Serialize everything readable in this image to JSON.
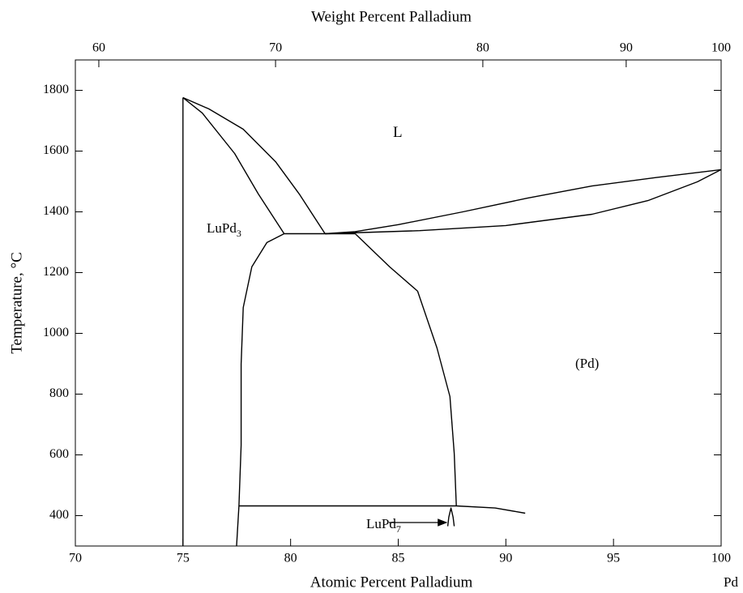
{
  "chart_data": {
    "type": "line",
    "x_label": "Atomic Percent Palladium",
    "x2_label": "Weight Percent Palladium",
    "y_label": "Temperature, °C",
    "x_end_label": "Pd",
    "xlim": [
      70,
      100
    ],
    "xticks": [
      70,
      75,
      80,
      85,
      90,
      95,
      100
    ],
    "ylim": [
      300,
      1900
    ],
    "yticks": [
      400,
      600,
      800,
      1000,
      1200,
      1400,
      1600,
      1800
    ],
    "x2ticks": [
      {
        "value": 71.09,
        "label": "60"
      },
      {
        "value": 79.3,
        "label": "70"
      },
      {
        "value": 88.93,
        "label": "80"
      },
      {
        "value": 95.59,
        "label": "90"
      },
      {
        "value": 100,
        "label": "100"
      }
    ],
    "grid": false,
    "series": [
      {
        "color": "#000000",
        "x": [
          75.0,
          75.0
        ],
        "values": [
          1776,
          300
        ]
      },
      {
        "color": "#000000",
        "x": [
          75.0,
          76.2,
          77.8,
          79.3,
          80.4,
          81.6
        ],
        "values": [
          1776,
          1739,
          1672,
          1565,
          1459,
          1328
        ]
      },
      {
        "color": "#000000",
        "x": [
          75.0,
          75.9,
          77.4,
          78.5,
          79.7
        ],
        "values": [
          1776,
          1725,
          1592,
          1459,
          1328
        ]
      },
      {
        "color": "#000000",
        "x": [
          79.7,
          83.0
        ],
        "values": [
          1328,
          1328
        ]
      },
      {
        "color": "#000000",
        "x": [
          79.7,
          78.9,
          78.2,
          77.8,
          77.7,
          77.7,
          77.6,
          77.49
        ],
        "values": [
          1328,
          1299,
          1219,
          1085,
          899,
          632,
          432,
          301
        ]
      },
      {
        "color": "#000000",
        "x": [
          83.0,
          84.6,
          85.9,
          86.8,
          87.4,
          87.6,
          87.7
        ],
        "values": [
          1328,
          1219,
          1139,
          952,
          792,
          605,
          432
        ]
      },
      {
        "color": "#000000",
        "x": [
          77.6,
          87.7,
          89.5,
          90.9
        ],
        "values": [
          432,
          432,
          425,
          408
        ]
      },
      {
        "color": "#000000",
        "x": [
          87.3,
          87.35,
          87.45,
          87.55,
          87.6
        ],
        "values": [
          365,
          395,
          425,
          395,
          365
        ]
      },
      {
        "color": "#000000",
        "x": [
          81.6,
          83,
          85,
          88,
          91,
          94,
          97,
          100
        ],
        "values": [
          1328,
          1335,
          1358,
          1400,
          1445,
          1485,
          1513,
          1539
        ]
      },
      {
        "color": "#000000",
        "x": [
          81.6,
          86,
          90,
          94,
          96.6,
          98.9,
          100
        ],
        "values": [
          1328,
          1338,
          1355,
          1392,
          1437,
          1499,
          1539
        ]
      }
    ],
    "annotations": [
      {
        "text": "L"
      },
      {
        "text": "LuPd",
        "subscript": "3"
      },
      {
        "text": "(Pd)"
      },
      {
        "text": "LuPd",
        "subscript": "7"
      }
    ]
  }
}
